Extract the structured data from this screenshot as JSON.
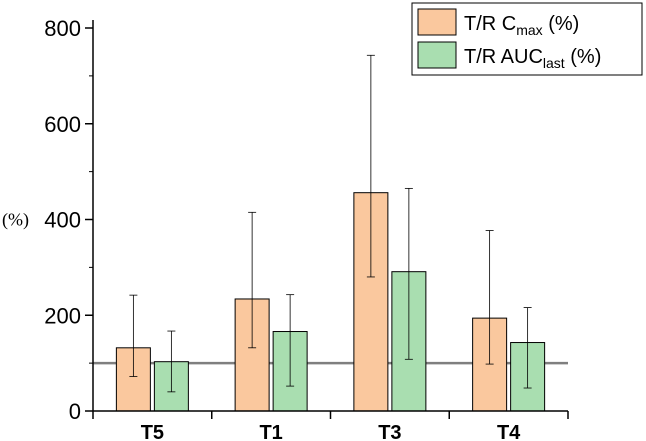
{
  "chart_data": {
    "type": "bar",
    "title": "",
    "xlabel": "",
    "ylabel": "(%)",
    "ylim": [
      0,
      800
    ],
    "yticks": [
      0,
      200,
      400,
      600,
      800
    ],
    "categories": [
      "T5",
      "T1",
      "T3",
      "T4"
    ],
    "grid": false,
    "legend_position": "top-right",
    "reference_line": 100,
    "series": [
      {
        "legend_main": "T/R C",
        "legend_sub": "max",
        "legend_suffix": " (%)",
        "color": "#FAC89E",
        "values": [
          132,
          234,
          456,
          194
        ],
        "error_low": [
          72,
          132,
          280,
          98
        ],
        "error_high": [
          242,
          415,
          743,
          377
        ]
      },
      {
        "legend_main": "T/R AUC",
        "legend_sub": "last",
        "legend_suffix": " (%)",
        "color": "#A9DEB0",
        "values": [
          103,
          166,
          291,
          143
        ],
        "error_low": [
          40,
          52,
          108,
          48
        ],
        "error_high": [
          167,
          243,
          465,
          216
        ]
      }
    ]
  }
}
